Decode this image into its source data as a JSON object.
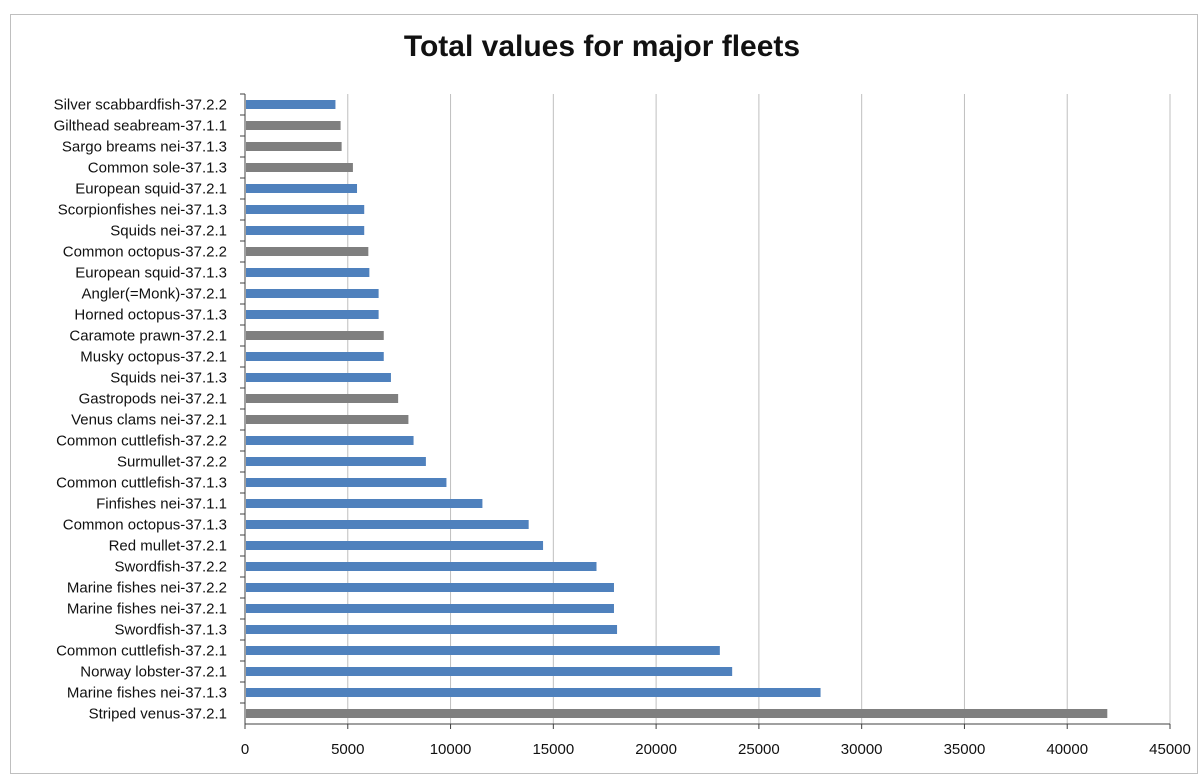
{
  "chart_data": {
    "type": "bar",
    "orientation": "horizontal",
    "title": "Total values for major fleets",
    "xlabel": "",
    "ylabel": "",
    "xlim": [
      0,
      45000
    ],
    "x_ticks": [
      0,
      5000,
      10000,
      15000,
      20000,
      25000,
      30000,
      35000,
      40000,
      45000
    ],
    "grid": "vertical",
    "legend": "none",
    "colors": {
      "blue": "#4f81bd",
      "gray": "#7f7f7f",
      "grid": "#bfbfbf",
      "axis": "#404040"
    },
    "categories": [
      "Silver scabbardfish-37.2.2",
      "Gilthead seabream-37.1.1",
      "Sargo breams nei-37.1.3",
      "Common sole-37.1.3",
      "European squid-37.2.1",
      "Scorpionfishes nei-37.1.3",
      "Squids nei-37.2.1",
      "Common octopus-37.2.2",
      "European squid-37.1.3",
      "Angler(=Monk)-37.2.1",
      "Horned octopus-37.1.3",
      "Caramote prawn-37.2.1",
      "Musky octopus-37.2.1",
      "Squids nei-37.1.3",
      "Gastropods nei-37.2.1",
      "Venus clams nei-37.2.1",
      "Common cuttlefish-37.2.2",
      "Surmullet-37.2.2",
      "Common cuttlefish-37.1.3",
      "Finfishes nei-37.1.1",
      "Common octopus-37.1.3",
      "Red mullet-37.2.1",
      "Swordfish-37.2.2",
      "Marine fishes nei-37.2.2",
      "Marine fishes nei-37.2.1",
      "Swordfish-37.1.3",
      "Common cuttlefish-37.2.1",
      "Norway lobster-37.2.1",
      "Marine fishes nei-37.1.3",
      "Striped venus-37.2.1"
    ],
    "values": [
      4400,
      4650,
      4700,
      5250,
      5450,
      5800,
      5800,
      6000,
      6050,
      6500,
      6500,
      6750,
      6750,
      7100,
      7450,
      7950,
      8200,
      8800,
      9800,
      11550,
      13800,
      14500,
      17100,
      17950,
      17950,
      18100,
      23100,
      23700,
      28000,
      41950
    ],
    "bar_colors": [
      "blue",
      "gray",
      "gray",
      "gray",
      "blue",
      "blue",
      "blue",
      "gray",
      "blue",
      "blue",
      "blue",
      "gray",
      "blue",
      "blue",
      "gray",
      "gray",
      "blue",
      "blue",
      "blue",
      "blue",
      "blue",
      "blue",
      "blue",
      "blue",
      "blue",
      "blue",
      "blue",
      "blue",
      "blue",
      "gray"
    ]
  }
}
